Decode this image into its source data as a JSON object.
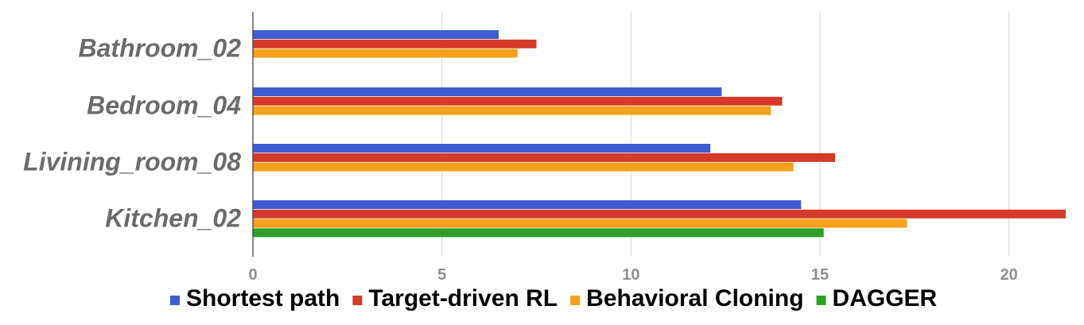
{
  "chart_data": {
    "type": "bar",
    "orientation": "horizontal",
    "categories": [
      "Bathroom_02",
      "Bedroom_04",
      "Livining_room_08",
      "Kitchen_02"
    ],
    "series": [
      {
        "name": "Shortest path",
        "color": "#3f5cd0",
        "values": [
          6.5,
          12.4,
          12.1,
          14.5
        ]
      },
      {
        "name": "Target-driven RL",
        "color": "#d63a2a",
        "values": [
          7.5,
          14.0,
          15.4,
          21.5
        ]
      },
      {
        "name": "Behavioral Cloning",
        "color": "#f5a11c",
        "values": [
          7.0,
          13.7,
          14.3,
          17.3
        ]
      },
      {
        "name": "DAGGER",
        "color": "#2ea02a",
        "values": [
          null,
          null,
          null,
          15.1
        ]
      }
    ],
    "xlim": [
      0,
      21.5
    ],
    "x_ticks": [
      "0",
      "5",
      "10",
      "15",
      "20"
    ],
    "x_tick_values": [
      0,
      5,
      10,
      15,
      20
    ],
    "grid": true,
    "legend_position": "bottom"
  }
}
